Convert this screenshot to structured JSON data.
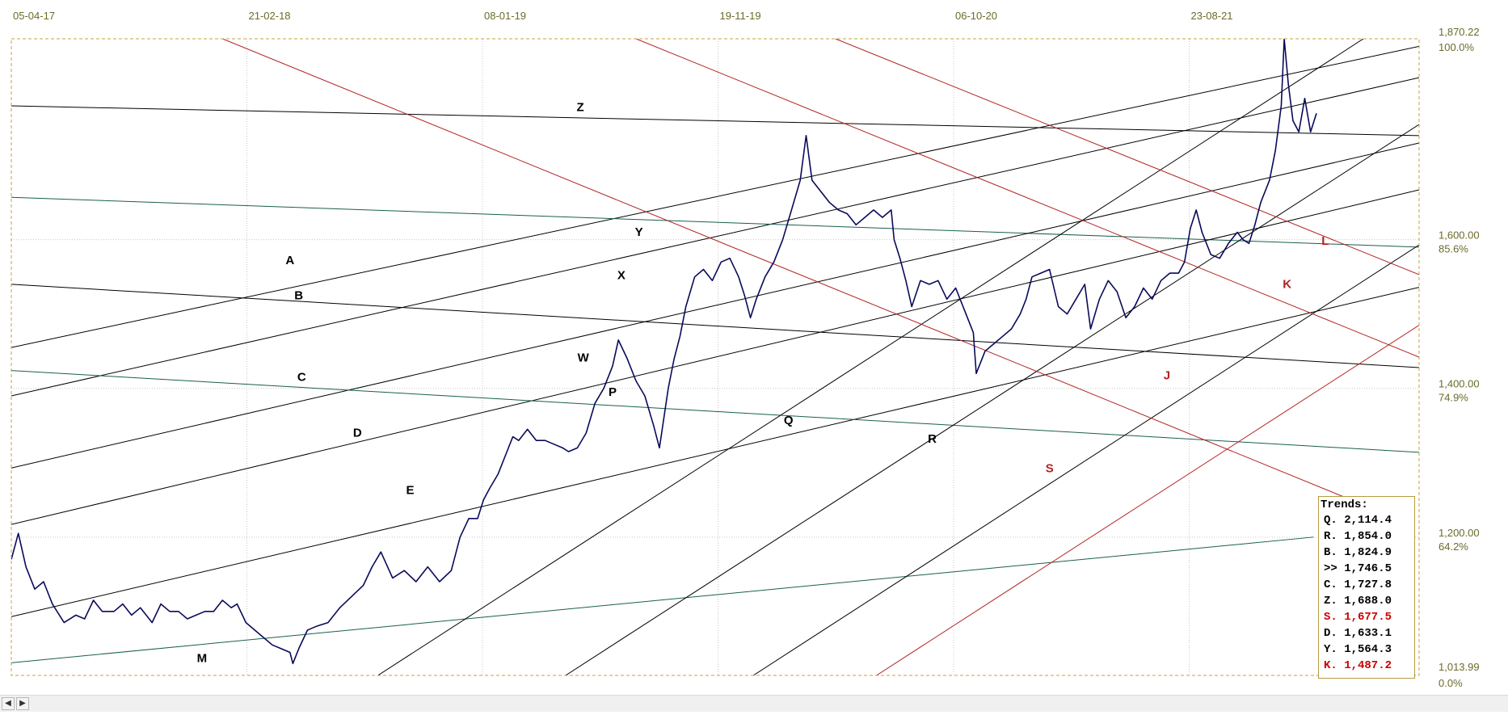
{
  "chart_data": {
    "type": "line",
    "x_axis": {
      "ticks": [
        "05-04-17",
        "21-02-18",
        "08-01-19",
        "19-11-19",
        "06-10-20",
        "23-08-21"
      ]
    },
    "y_axis": {
      "min": 1013.99,
      "max": 1870.22,
      "max_label": "1,870.22",
      "max_pct": "100.0%",
      "min_label": "1,013.99",
      "min_pct": "0.0%",
      "ticks": [
        {
          "value": 1600,
          "label": "1,600.00",
          "pct": "85.6%"
        },
        {
          "value": 1400,
          "label": "1,400.00",
          "pct": "74.9%"
        },
        {
          "value": 1200,
          "label": "1,200.00",
          "pct": "64.2%"
        }
      ]
    },
    "series": [
      {
        "values": [
          [
            0,
            1170
          ],
          [
            1.2,
            1205
          ],
          [
            2.5,
            1160
          ],
          [
            4,
            1130
          ],
          [
            5.5,
            1140
          ],
          [
            7,
            1110
          ],
          [
            9,
            1085
          ],
          [
            11,
            1095
          ],
          [
            12.5,
            1090
          ],
          [
            14,
            1115
          ],
          [
            15.5,
            1100
          ],
          [
            17.5,
            1100
          ],
          [
            19,
            1110
          ],
          [
            20.5,
            1095
          ],
          [
            22,
            1105
          ],
          [
            24,
            1085
          ],
          [
            25.5,
            1110
          ],
          [
            27,
            1100
          ],
          [
            28.5,
            1100
          ],
          [
            30,
            1090
          ],
          [
            31.5,
            1095
          ],
          [
            33,
            1100
          ],
          [
            34.5,
            1100
          ],
          [
            36,
            1115
          ],
          [
            37.5,
            1105
          ],
          [
            38.5,
            1110
          ],
          [
            40,
            1085
          ],
          [
            41.5,
            1075
          ],
          [
            43,
            1065
          ],
          [
            44.5,
            1055
          ],
          [
            46,
            1050
          ],
          [
            47.5,
            1045
          ],
          [
            48,
            1030
          ],
          [
            49,
            1050
          ],
          [
            50.5,
            1075
          ],
          [
            52,
            1080
          ],
          [
            54,
            1085
          ],
          [
            56,
            1105
          ],
          [
            58,
            1120
          ],
          [
            60,
            1135
          ],
          [
            61.5,
            1160
          ],
          [
            63,
            1180
          ],
          [
            65,
            1145
          ],
          [
            67,
            1155
          ],
          [
            69,
            1140
          ],
          [
            71,
            1160
          ],
          [
            73,
            1140
          ],
          [
            75,
            1155
          ],
          [
            76.5,
            1200
          ],
          [
            78,
            1225
          ],
          [
            79.5,
            1225
          ],
          [
            80.5,
            1250
          ],
          [
            81.5,
            1265
          ],
          [
            83,
            1285
          ],
          [
            84.5,
            1315
          ],
          [
            85.5,
            1335
          ],
          [
            86.5,
            1330
          ],
          [
            88,
            1345
          ],
          [
            89.5,
            1330
          ],
          [
            91,
            1330
          ],
          [
            92.5,
            1325
          ],
          [
            94,
            1320
          ],
          [
            95,
            1315
          ],
          [
            96.5,
            1320
          ],
          [
            98,
            1340
          ],
          [
            99.5,
            1380
          ],
          [
            101,
            1400
          ],
          [
            102.5,
            1430
          ],
          [
            103.5,
            1465
          ],
          [
            105,
            1440
          ],
          [
            106.5,
            1410
          ],
          [
            108,
            1390
          ],
          [
            109.5,
            1350
          ],
          [
            110.5,
            1320
          ],
          [
            112,
            1400
          ],
          [
            113,
            1440
          ],
          [
            114,
            1470
          ],
          [
            115,
            1510
          ],
          [
            116.5,
            1550
          ],
          [
            118,
            1560
          ],
          [
            119.5,
            1545
          ],
          [
            121,
            1570
          ],
          [
            122.5,
            1575
          ],
          [
            124,
            1550
          ],
          [
            125,
            1525
          ],
          [
            126,
            1495
          ],
          [
            127,
            1520
          ],
          [
            128.5,
            1550
          ],
          [
            130,
            1570
          ],
          [
            131.5,
            1600
          ],
          [
            133,
            1640
          ],
          [
            134.5,
            1680
          ],
          [
            135.5,
            1740
          ],
          [
            136.5,
            1680
          ],
          [
            138,
            1665
          ],
          [
            139.5,
            1650
          ],
          [
            141,
            1640
          ],
          [
            142.5,
            1635
          ],
          [
            144,
            1620
          ],
          [
            145.5,
            1630
          ],
          [
            147,
            1640
          ],
          [
            148.5,
            1630
          ],
          [
            150,
            1640
          ],
          [
            150.5,
            1600
          ],
          [
            151.5,
            1575
          ],
          [
            152.5,
            1545
          ],
          [
            153.5,
            1510
          ],
          [
            155,
            1545
          ],
          [
            156.5,
            1540
          ],
          [
            158,
            1545
          ],
          [
            159.5,
            1520
          ],
          [
            161,
            1535
          ],
          [
            162.5,
            1505
          ],
          [
            164,
            1475
          ],
          [
            164.5,
            1420
          ],
          [
            166,
            1450
          ],
          [
            167.5,
            1460
          ],
          [
            169,
            1470
          ],
          [
            170.5,
            1480
          ],
          [
            172,
            1500
          ],
          [
            173,
            1520
          ],
          [
            174,
            1550
          ],
          [
            175.5,
            1555
          ],
          [
            177,
            1560
          ],
          [
            178.5,
            1510
          ],
          [
            180,
            1500
          ],
          [
            181.5,
            1520
          ],
          [
            183,
            1540
          ],
          [
            184,
            1480
          ],
          [
            185.5,
            1520
          ],
          [
            187,
            1545
          ],
          [
            188.5,
            1530
          ],
          [
            190,
            1495
          ],
          [
            191.5,
            1510
          ],
          [
            193,
            1535
          ],
          [
            194.5,
            1520
          ],
          [
            196,
            1545
          ],
          [
            197.5,
            1555
          ],
          [
            199,
            1555
          ],
          [
            200,
            1570
          ],
          [
            201,
            1615
          ],
          [
            202,
            1640
          ],
          [
            203,
            1610
          ],
          [
            204.5,
            1580
          ],
          [
            206,
            1575
          ],
          [
            207.5,
            1595
          ],
          [
            209,
            1610
          ],
          [
            210,
            1600
          ],
          [
            211,
            1595
          ],
          [
            212,
            1620
          ],
          [
            213,
            1650
          ],
          [
            214.5,
            1680
          ],
          [
            215.5,
            1720
          ],
          [
            216.5,
            1780
          ],
          [
            217,
            1870
          ],
          [
            217.7,
            1810
          ],
          [
            218.5,
            1760
          ],
          [
            219.5,
            1745
          ],
          [
            220.5,
            1790
          ],
          [
            221.5,
            1745
          ],
          [
            222.5,
            1770
          ]
        ]
      }
    ],
    "trendlines": [
      {
        "label": "A",
        "color": "#000000",
        "from": [
          0,
          1780
        ],
        "to": [
          240,
          1740
        ]
      },
      {
        "label": "Z",
        "color": "#000000",
        "from": [
          0,
          1455
        ],
        "to": [
          240,
          1860
        ]
      },
      {
        "label": "Y",
        "color": "#000000",
        "from": [
          0,
          1390
        ],
        "to": [
          240,
          1818
        ]
      },
      {
        "label": "B",
        "color": "#1a5e4e",
        "from": [
          0,
          1657
        ],
        "to": [
          240,
          1590
        ]
      },
      {
        "label": "C",
        "color": "#000000",
        "from": [
          0,
          1293
        ],
        "to": [
          240,
          1730
        ]
      },
      {
        "label": "X",
        "color": "#000000",
        "from": [
          0,
          1217
        ],
        "to": [
          240,
          1667
        ]
      },
      {
        "label": "D",
        "color": "#000000",
        "from": [
          0,
          1540
        ],
        "to": [
          240,
          1428
        ]
      },
      {
        "label": "W",
        "color": "#000000",
        "from": [
          0,
          1093
        ],
        "to": [
          240,
          1536
        ]
      },
      {
        "label": "E",
        "color": "#1a5e4e",
        "from": [
          0,
          1424
        ],
        "to": [
          240,
          1314
        ]
      },
      {
        "label": "M",
        "color": "#1a5e4e",
        "from": [
          0,
          1031
        ],
        "to": [
          222,
          1200
        ]
      },
      {
        "label": "P",
        "color": "#000000",
        "from": [
          62.5,
          1013.99
        ],
        "to": [
          230.5,
          1870.22
        ]
      },
      {
        "label": "Q",
        "color": "#000000",
        "from": [
          94.5,
          1013.99
        ],
        "to": [
          240,
          1755
        ]
      },
      {
        "label": "R",
        "color": "#000000",
        "from": [
          126.5,
          1013.99
        ],
        "to": [
          240,
          1593
        ]
      },
      {
        "label": "S",
        "color": "#b22222",
        "from": [
          147.5,
          1013.99
        ],
        "to": [
          240,
          1485
        ]
      },
      {
        "label": "J",
        "color": "#b22222",
        "from": [
          36,
          1870.22
        ],
        "to": [
          230,
          1245
        ]
      },
      {
        "label": "K",
        "color": "#b22222",
        "from": [
          106.5,
          1870.22
        ],
        "to": [
          240,
          1442
        ]
      },
      {
        "label": "L",
        "color": "#b22222",
        "from": [
          140.5,
          1870.22
        ],
        "to": [
          240,
          1553
        ]
      }
    ],
    "line_labels": [
      {
        "text": "Z",
        "x": 97,
        "y": 1773,
        "color": "#000000"
      },
      {
        "text": "Y",
        "x": 107,
        "y": 1605,
        "color": "#000000"
      },
      {
        "text": "A",
        "x": 47.5,
        "y": 1567,
        "color": "#000000"
      },
      {
        "text": "B",
        "x": 49,
        "y": 1520,
        "color": "#000000"
      },
      {
        "text": "X",
        "x": 104,
        "y": 1547,
        "color": "#000000"
      },
      {
        "text": "W",
        "x": 97.5,
        "y": 1436,
        "color": "#000000"
      },
      {
        "text": "C",
        "x": 49.5,
        "y": 1410,
        "color": "#000000"
      },
      {
        "text": "P",
        "x": 102.5,
        "y": 1390,
        "color": "#000000"
      },
      {
        "text": "D",
        "x": 59,
        "y": 1335,
        "color": "#000000"
      },
      {
        "text": "Q",
        "x": 132.5,
        "y": 1352,
        "color": "#000000"
      },
      {
        "text": "R",
        "x": 157,
        "y": 1327,
        "color": "#000000"
      },
      {
        "text": "S",
        "x": 177,
        "y": 1287,
        "color": "#b22222"
      },
      {
        "text": "E",
        "x": 68,
        "y": 1258,
        "color": "#000000"
      },
      {
        "text": "M",
        "x": 32.5,
        "y": 1032,
        "color": "#000000"
      },
      {
        "text": "J",
        "x": 197,
        "y": 1412,
        "color": "#b22222"
      },
      {
        "text": "K",
        "x": 217.5,
        "y": 1535,
        "color": "#b22222"
      },
      {
        "text": "L",
        "x": 224,
        "y": 1593,
        "color": "#b22222"
      }
    ],
    "grid": true
  },
  "trends": {
    "title": "Trends:",
    "items": [
      {
        "text": "Q. 2,114.4",
        "color": "#000000"
      },
      {
        "text": "R. 1,854.0",
        "color": "#000000"
      },
      {
        "text": "B. 1,824.9",
        "color": "#000000"
      },
      {
        "text": ">> 1,746.5",
        "color": "#000000"
      },
      {
        "text": "C. 1,727.8",
        "color": "#000000"
      },
      {
        "text": "Z. 1,688.0",
        "color": "#000000"
      },
      {
        "text": "S. 1,677.5",
        "color": "#cc0000"
      },
      {
        "text": "D. 1,633.1",
        "color": "#000000"
      },
      {
        "text": "Y. 1,564.3",
        "color": "#000000"
      },
      {
        "text": "K. 1,487.2",
        "color": "#cc0000"
      }
    ]
  },
  "scrollbar": {
    "left_icon": "arrow-left-icon",
    "right_icon": "arrow-right-icon"
  }
}
